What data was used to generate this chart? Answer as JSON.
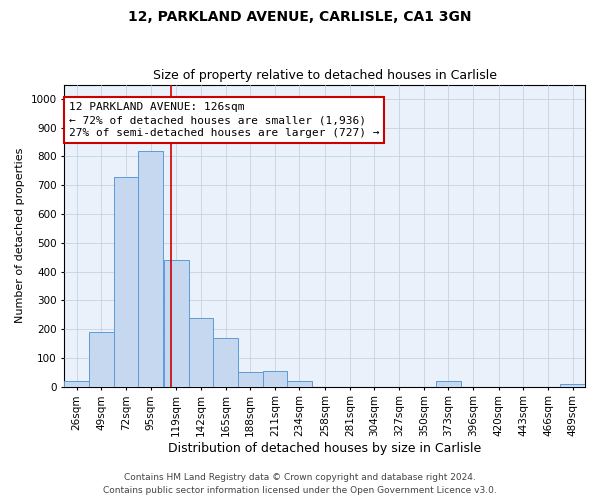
{
  "title1": "12, PARKLAND AVENUE, CARLISLE, CA1 3GN",
  "title2": "Size of property relative to detached houses in Carlisle",
  "xlabel": "Distribution of detached houses by size in Carlisle",
  "ylabel": "Number of detached properties",
  "bin_labels": [
    "26sqm",
    "49sqm",
    "72sqm",
    "95sqm",
    "119sqm",
    "142sqm",
    "165sqm",
    "188sqm",
    "211sqm",
    "234sqm",
    "258sqm",
    "281sqm",
    "304sqm",
    "327sqm",
    "350sqm",
    "373sqm",
    "396sqm",
    "420sqm",
    "443sqm",
    "466sqm",
    "489sqm"
  ],
  "bar_values": [
    20,
    190,
    730,
    820,
    440,
    240,
    170,
    50,
    55,
    20,
    0,
    0,
    0,
    0,
    0,
    20,
    0,
    0,
    0,
    0,
    10
  ],
  "bin_edges": [
    26,
    49,
    72,
    95,
    119,
    142,
    165,
    188,
    211,
    234,
    258,
    281,
    304,
    327,
    350,
    373,
    396,
    420,
    443,
    466,
    489
  ],
  "bar_color": "#C5D8EF",
  "bar_edgecolor": "#5B9BD5",
  "property_line_x": 126,
  "property_line_color": "#CC0000",
  "annotation_text": "12 PARKLAND AVENUE: 126sqm\n← 72% of detached houses are smaller (1,936)\n27% of semi-detached houses are larger (727) →",
  "annotation_box_color": "#FFFFFF",
  "annotation_box_edgecolor": "#CC0000",
  "ylim": [
    0,
    1050
  ],
  "yticks": [
    0,
    100,
    200,
    300,
    400,
    500,
    600,
    700,
    800,
    900,
    1000
  ],
  "footnote": "Contains HM Land Registry data © Crown copyright and database right 2024.\nContains public sector information licensed under the Open Government Licence v3.0.",
  "background_color": "#FFFFFF",
  "plot_bg_color": "#EAF1FB",
  "grid_color": "#BBCCDD",
  "title1_fontsize": 10,
  "title2_fontsize": 9,
  "xlabel_fontsize": 9,
  "ylabel_fontsize": 8,
  "tick_fontsize": 7.5,
  "annotation_fontsize": 8,
  "footnote_fontsize": 6.5
}
